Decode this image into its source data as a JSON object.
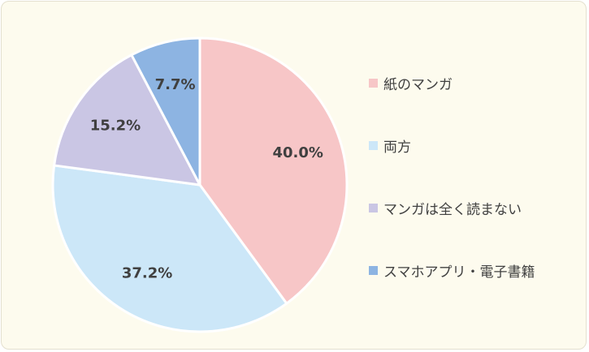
{
  "chart_data": {
    "type": "pie",
    "title": "",
    "categories": [
      "紙のマンガ",
      "両方",
      "マンガは全く読まない",
      "スマホアプリ・電子書籍"
    ],
    "values": [
      40.0,
      37.2,
      15.2,
      7.7
    ],
    "data_labels": [
      "40.0%",
      "37.2%",
      "15.2%",
      "7.7%"
    ],
    "colors": [
      "#f7c6c7",
      "#cce7f8",
      "#cac6e4",
      "#8db4e2"
    ],
    "start_angle": "12 o'clock",
    "direction": "clockwise",
    "legend_position": "right"
  }
}
